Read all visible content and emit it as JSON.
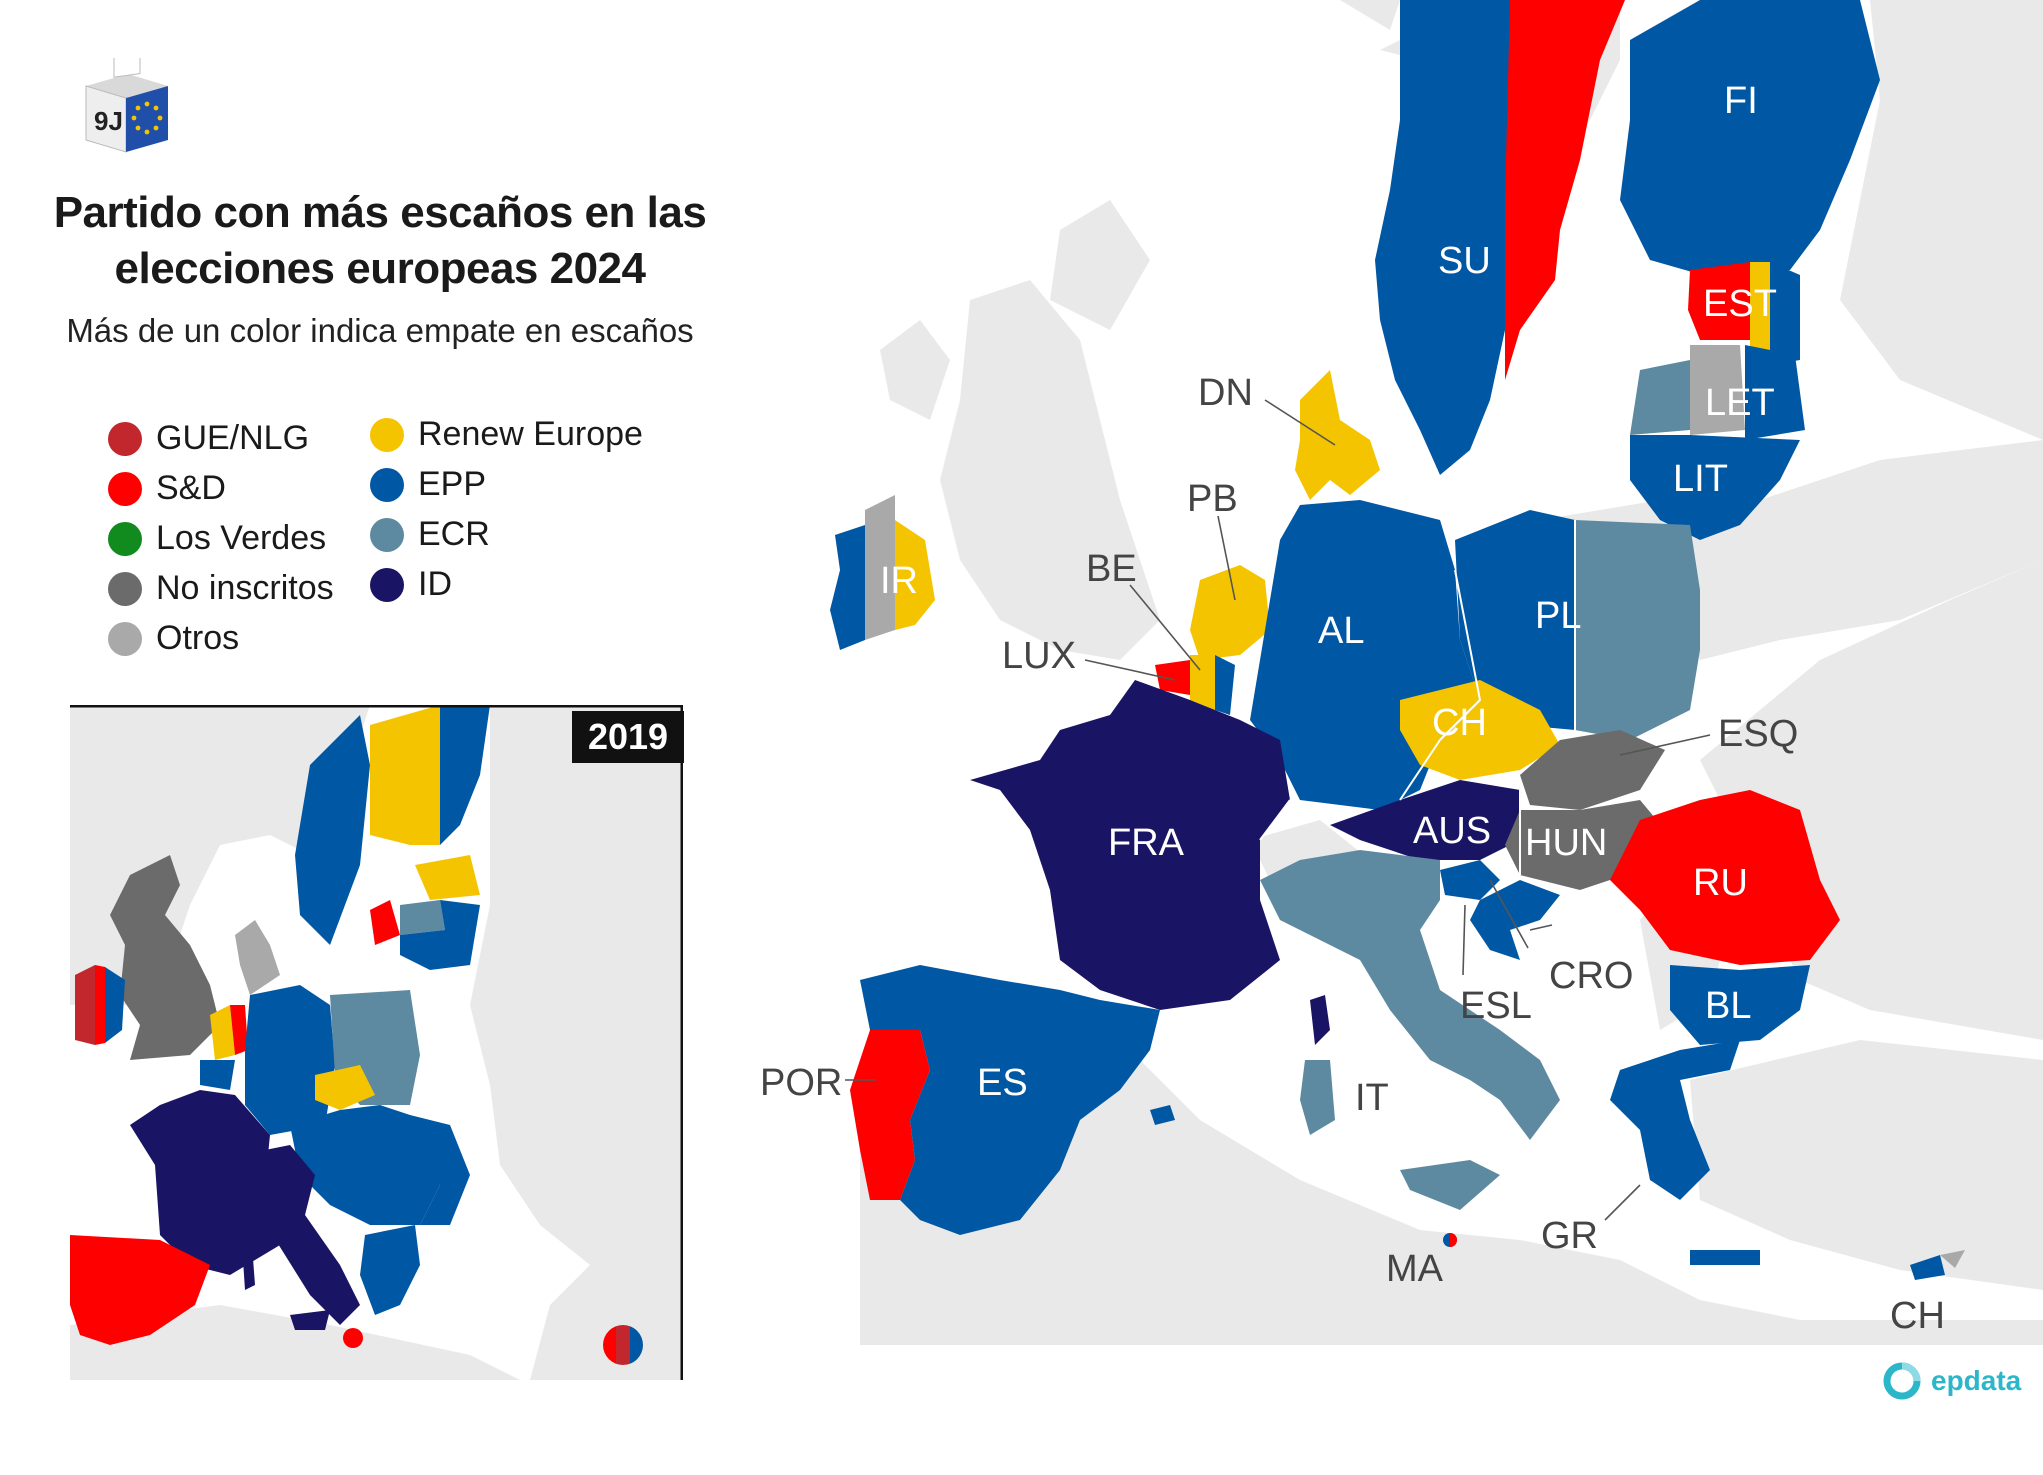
{
  "title": "Partido con más escaños en las elecciones europeas 2024",
  "subtitle": "Más de un color indica empate en escaños",
  "logo": {
    "text": "9J",
    "icon": "ballot-box-eu-icon"
  },
  "legend": [
    {
      "label": "GUE/NLG",
      "color": "#c1272d"
    },
    {
      "label": "S&D",
      "color": "#ff0000"
    },
    {
      "label": "Los Verdes",
      "color": "#118a1e"
    },
    {
      "label": "No inscritos",
      "color": "#6b6b6b"
    },
    {
      "label": "Otros",
      "color": "#a9a9a9"
    },
    {
      "label": "Renew Europe",
      "color": "#f5c400"
    },
    {
      "label": "EPP",
      "color": "#0057a3"
    },
    {
      "label": "ECR",
      "color": "#5d8aa0"
    },
    {
      "label": "ID",
      "color": "#1a1464"
    }
  ],
  "inset": {
    "year": "2019"
  },
  "countries": [
    {
      "code": "FI",
      "party": "EPP"
    },
    {
      "code": "SU",
      "party": "EPP"
    },
    {
      "code": "EST",
      "party": "S&D"
    },
    {
      "code": "LET",
      "party": "Otros"
    },
    {
      "code": "LIT",
      "party": "EPP"
    },
    {
      "code": "DN",
      "party": "Renew Europe"
    },
    {
      "code": "IR",
      "party": "Otros"
    },
    {
      "code": "PB",
      "party": "Renew Europe"
    },
    {
      "code": "BE",
      "party": "S&D"
    },
    {
      "code": "LUX",
      "party": "EPP"
    },
    {
      "code": "AL",
      "party": "EPP"
    },
    {
      "code": "PL",
      "party": "EPP"
    },
    {
      "code": "CH",
      "party": "Renew Europe"
    },
    {
      "code": "ESQ",
      "party": "No inscritos"
    },
    {
      "code": "AUS",
      "party": "ID"
    },
    {
      "code": "HUN",
      "party": "No inscritos"
    },
    {
      "code": "FRA",
      "party": "ID"
    },
    {
      "code": "RU",
      "party": "S&D"
    },
    {
      "code": "ESL",
      "party": "EPP"
    },
    {
      "code": "CRO",
      "party": "EPP"
    },
    {
      "code": "IT",
      "party": "ECR"
    },
    {
      "code": "BL",
      "party": "EPP"
    },
    {
      "code": "POR",
      "party": "S&D"
    },
    {
      "code": "ES",
      "party": "EPP"
    },
    {
      "code": "GR",
      "party": "EPP"
    },
    {
      "code": "MA",
      "party": "S&D"
    },
    {
      "code": "CH",
      "party": "EPP"
    }
  ],
  "brand": {
    "name": "epdata",
    "icon": "epdata-logo-icon"
  }
}
